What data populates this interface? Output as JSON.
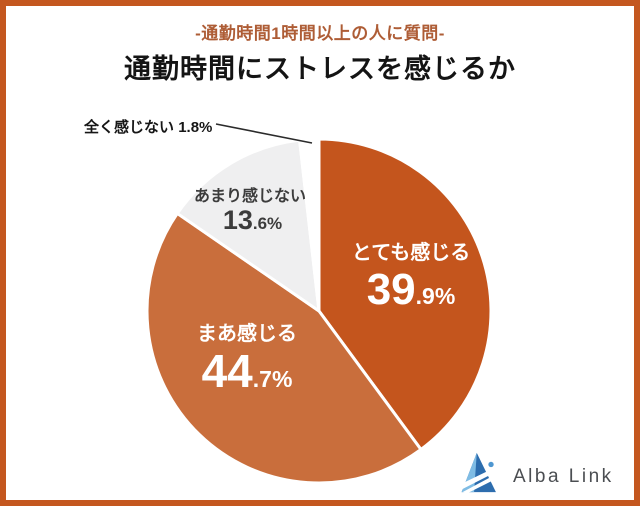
{
  "frame": {
    "border_color": "#C4571F",
    "background": "#FFFFFF"
  },
  "header": {
    "subtitle": "-通勤時間1時間以上の人に質問-",
    "subtitle_color": "#AE5D36",
    "title": "通勤時間にストレスを感じるか",
    "title_color": "#141414"
  },
  "chart_data": {
    "type": "pie",
    "title": "通勤時間にストレスを感じるか",
    "unit": "%",
    "start_angle_deg": 0,
    "direction": "clockwise",
    "legend": "none",
    "separator_color": "#FFFFFF",
    "slices": [
      {
        "label": "とても感じる",
        "value": 39.9,
        "color": "#C4551D",
        "text_color": "#FFFFFF"
      },
      {
        "label": "まあ感じる",
        "value": 44.7,
        "color": "#C96E3C",
        "text_color": "#FFFFFF"
      },
      {
        "label": "あまり感じない",
        "value": 13.6,
        "color": "#EFEFF0",
        "text_color": "#3C3C3C"
      },
      {
        "label": "全く感じない",
        "value": 1.8,
        "color": "#FFFFFF",
        "text_color": "#161616"
      }
    ]
  },
  "callout": {
    "leader_line_color": "#2B2B2B"
  },
  "logo": {
    "text": "Alba Link",
    "text_color": "#4B4E52",
    "triangle_dark": "#2D6DAE",
    "triangle_light": "#7FBCE4",
    "dot_color": "#4E97D1"
  }
}
